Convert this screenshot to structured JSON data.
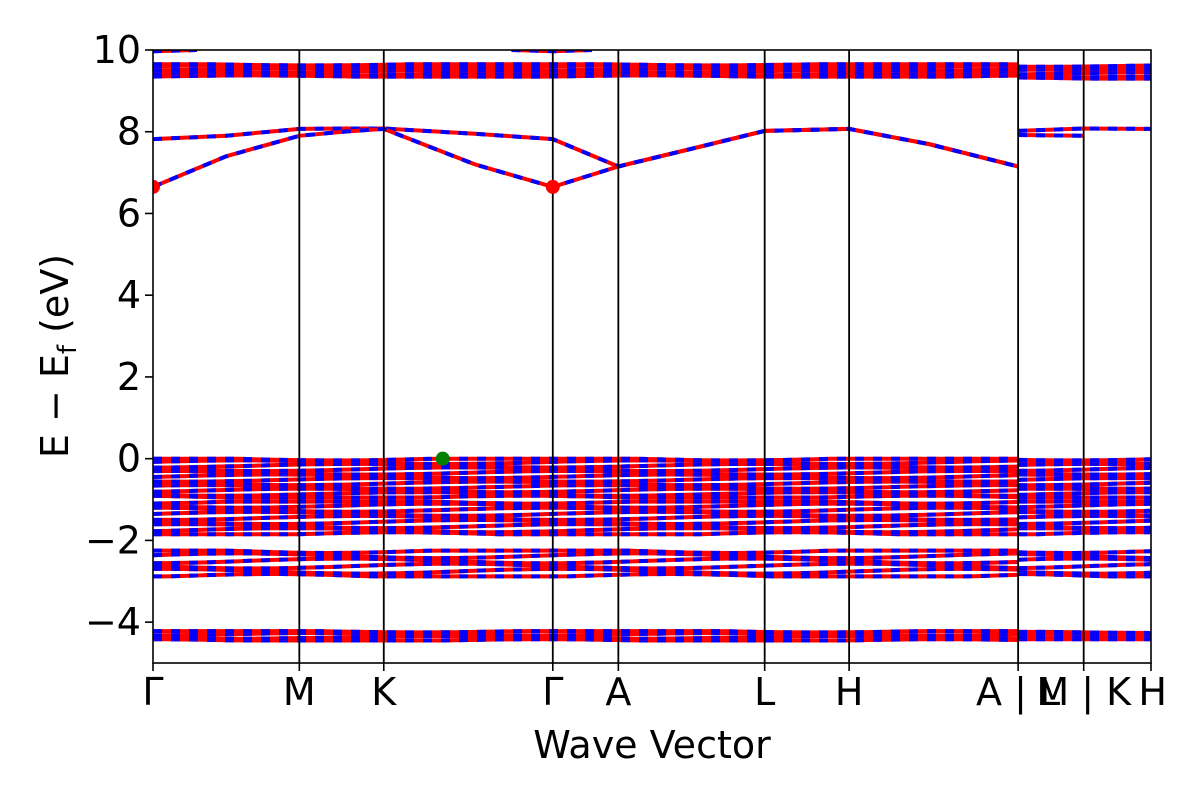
{
  "chart_data": {
    "type": "line",
    "title": "",
    "xlabel": "Wave Vector",
    "ylabel_main": "E − E",
    "ylabel_sub": "f",
    "ylabel_tail": " (eV)",
    "ylim": [
      -5,
      10
    ],
    "yticks": [
      -4,
      -2,
      0,
      2,
      4,
      6,
      8,
      10
    ],
    "ytick_labels": [
      "−4",
      "−2",
      "0",
      "2",
      "4",
      "6",
      "8",
      "10"
    ],
    "kpath": [
      {
        "label": "Γ",
        "x": 0.0
      },
      {
        "label": "M",
        "x": 1.0
      },
      {
        "label": "K",
        "x": 1.577
      },
      {
        "label": "Γ",
        "x": 2.732
      },
      {
        "label": "A",
        "x": 3.18
      },
      {
        "label": "L",
        "x": 4.18
      },
      {
        "label": "H",
        "x": 4.757
      },
      {
        "label": "A | L",
        "x": 5.912
      },
      {
        "label": "M | K",
        "x": 6.36
      },
      {
        "label": "H",
        "x": 6.82
      }
    ],
    "path_breaks_after_index": [
      7,
      8
    ],
    "spin_colors": {
      "spin_up": "#ff0000",
      "spin_down": "#0000ff"
    },
    "conduction_bands": [
      {
        "x": [
          0,
          0.5,
          1.0,
          1.3,
          1.577,
          2.2,
          2.732,
          3.18,
          3.7,
          4.18,
          4.757,
          5.3,
          5.912
        ],
        "y": [
          7.82,
          7.9,
          8.07,
          8.08,
          8.08,
          7.95,
          7.82,
          7.15,
          7.6,
          8.02,
          8.07,
          7.7,
          7.15
        ]
      },
      {
        "x": [
          0,
          0.5,
          1.0,
          1.3,
          1.577,
          2.2,
          2.732,
          3.18,
          3.7,
          4.18,
          4.757,
          5.3,
          5.912
        ],
        "y": [
          6.65,
          7.4,
          7.9,
          8.0,
          8.07,
          7.2,
          6.65,
          7.15,
          7.6,
          8.02,
          8.07,
          7.7,
          7.15
        ]
      },
      {
        "x": [
          5.912,
          6.36,
          6.82
        ],
        "y": [
          8.02,
          8.08,
          8.07
        ]
      },
      {
        "x": [
          5.912,
          6.36
        ],
        "y": [
          7.92,
          7.9
        ]
      }
    ],
    "band_bundles": [
      {
        "segment": "main",
        "ymin": 9.35,
        "ymax": 9.65,
        "count": 6
      },
      {
        "segment": "branch",
        "ymin": 9.3,
        "ymax": 9.62,
        "count": 6
      },
      {
        "segment": "main",
        "ymin": -0.95,
        "ymax": 0.0,
        "count": 12
      },
      {
        "segment": "branch",
        "ymin": -0.95,
        "ymax": 0.0,
        "count": 12
      },
      {
        "segment": "main",
        "ymin": -1.85,
        "ymax": -1.05,
        "count": 9
      },
      {
        "segment": "branch",
        "ymin": -1.85,
        "ymax": -1.05,
        "count": 9
      },
      {
        "segment": "main",
        "ymin": -2.88,
        "ymax": -2.25,
        "count": 6
      },
      {
        "segment": "branch",
        "ymin": -2.88,
        "ymax": -2.25,
        "count": 6
      },
      {
        "segment": "main",
        "ymin": -4.45,
        "ymax": -4.22,
        "count": 4
      },
      {
        "segment": "branch",
        "ymin": -4.42,
        "ymax": -4.24,
        "count": 4
      }
    ],
    "top_bands": [
      {
        "x": [
          0,
          0.3
        ],
        "y": [
          9.97,
          10.0
        ]
      },
      {
        "x": [
          2.45,
          2.732,
          3.0
        ],
        "y": [
          10.0,
          9.97,
          10.0
        ]
      }
    ],
    "markers": [
      {
        "x": 0.0,
        "y": 6.65,
        "color": "#ff0000"
      },
      {
        "x": 2.732,
        "y": 6.65,
        "color": "#ff0000"
      },
      {
        "x": 1.98,
        "y": 0.0,
        "color": "#008000"
      }
    ]
  }
}
